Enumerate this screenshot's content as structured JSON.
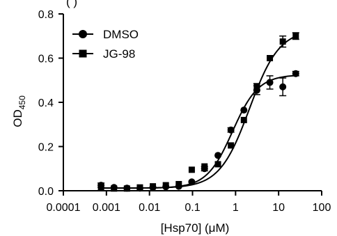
{
  "chart_data": {
    "type": "scatter",
    "title_partial": "(        )              ",
    "xlabel": "[Hsp70] (μM)",
    "ylabel_main": "OD",
    "ylabel_sub": "450",
    "x_scale": "log",
    "xlim": [
      0.0001,
      100
    ],
    "ylim": [
      0.0,
      0.8
    ],
    "x_ticks": [
      "0.0001",
      "0.001",
      "0.01",
      "0.1",
      "1",
      "10",
      "100"
    ],
    "y_ticks": [
      "0.0",
      "0.2",
      "0.4",
      "0.6",
      "0.8"
    ],
    "grid": false,
    "legend_position": "top-left",
    "series": [
      {
        "name": "DMSO",
        "marker": "circle",
        "color": "#000000",
        "x": [
          0.00075,
          0.0015,
          0.003,
          0.006,
          0.012,
          0.024,
          0.048,
          0.096,
          0.19,
          0.39,
          0.78,
          1.56,
          3.12,
          6.25,
          12.5,
          25
        ],
        "y": [
          0.025,
          0.015,
          0.012,
          0.012,
          0.015,
          0.018,
          0.02,
          0.04,
          0.1,
          0.16,
          0.275,
          0.365,
          0.455,
          0.49,
          0.47,
          0.53
        ],
        "err": [
          0.01,
          0,
          0,
          0,
          0,
          0,
          0,
          0,
          0.01,
          0,
          0.01,
          0,
          0.02,
          0.03,
          0.04,
          0.01
        ]
      },
      {
        "name": "JG-98",
        "marker": "square",
        "color": "#000000",
        "x": [
          0.00075,
          0.0015,
          0.003,
          0.006,
          0.012,
          0.024,
          0.048,
          0.096,
          0.19,
          0.39,
          0.78,
          1.56,
          3.12,
          6.25,
          12.5,
          25
        ],
        "y": [
          0.015,
          0.01,
          0.01,
          0.015,
          0.02,
          0.025,
          0.03,
          0.095,
          0.11,
          0.12,
          0.205,
          0.32,
          0.47,
          0.6,
          0.675,
          0.7
        ],
        "err": [
          0,
          0,
          0,
          0,
          0,
          0,
          0,
          0,
          0,
          0,
          0,
          0,
          0.015,
          0,
          0.025,
          0.015
        ]
      }
    ]
  }
}
